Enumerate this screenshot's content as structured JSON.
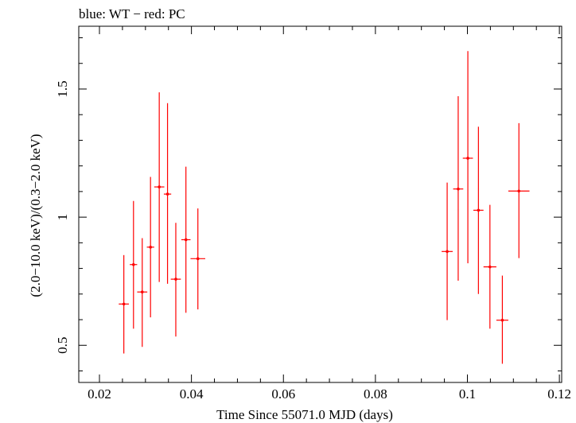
{
  "chart_data": {
    "type": "scatter",
    "title": "blue: WT − red: PC",
    "xlabel": "Time Since 55071.0 MJD (days)",
    "ylabel": "(2.0−10.0 keV)/(0.3−2.0 keV)",
    "xlim": [
      0.0155,
      0.1205
    ],
    "ylim": [
      0.355,
      1.745
    ],
    "xticks": [
      0.02,
      0.04,
      0.06,
      0.08,
      0.1,
      0.12
    ],
    "xtick_labels": [
      "0.02",
      "0.04",
      "0.06",
      "0.08",
      "0.1",
      "0.12"
    ],
    "yticks": [
      0.5,
      1,
      1.5
    ],
    "ytick_labels": [
      "0.5",
      "1",
      "1.5"
    ],
    "grid": false,
    "series": [
      {
        "name": "PC",
        "color": "#ff0000",
        "points": [
          {
            "x": 0.0253,
            "xerr": 0.0011,
            "y": 0.661,
            "ylo": 0.468,
            "yhi": 0.852
          },
          {
            "x": 0.0274,
            "xerr": 0.0008,
            "y": 0.815,
            "ylo": 0.565,
            "yhi": 1.063
          },
          {
            "x": 0.0293,
            "xerr": 0.0011,
            "y": 0.708,
            "ylo": 0.494,
            "yhi": 0.918
          },
          {
            "x": 0.0311,
            "xerr": 0.0008,
            "y": 0.883,
            "ylo": 0.609,
            "yhi": 1.157
          },
          {
            "x": 0.033,
            "xerr": 0.0011,
            "y": 1.118,
            "ylo": 0.747,
            "yhi": 1.487
          },
          {
            "x": 0.0348,
            "xerr": 0.0008,
            "y": 1.09,
            "ylo": 0.74,
            "yhi": 1.445
          },
          {
            "x": 0.0366,
            "xerr": 0.0011,
            "y": 0.758,
            "ylo": 0.534,
            "yhi": 0.978
          },
          {
            "x": 0.0388,
            "xerr": 0.001,
            "y": 0.912,
            "ylo": 0.627,
            "yhi": 1.197
          },
          {
            "x": 0.0414,
            "xerr": 0.0016,
            "y": 0.838,
            "ylo": 0.64,
            "yhi": 1.034
          },
          {
            "x": 0.0956,
            "xerr": 0.0012,
            "y": 0.866,
            "ylo": 0.598,
            "yhi": 1.135
          },
          {
            "x": 0.098,
            "xerr": 0.0011,
            "y": 1.11,
            "ylo": 0.752,
            "yhi": 1.472
          },
          {
            "x": 0.1001,
            "xerr": 0.0011,
            "y": 1.23,
            "ylo": 0.82,
            "yhi": 1.648
          },
          {
            "x": 0.1024,
            "xerr": 0.0011,
            "y": 1.027,
            "ylo": 0.7,
            "yhi": 1.353
          },
          {
            "x": 0.1049,
            "xerr": 0.0014,
            "y": 0.806,
            "ylo": 0.565,
            "yhi": 1.048
          },
          {
            "x": 0.1076,
            "xerr": 0.0013,
            "y": 0.598,
            "ylo": 0.428,
            "yhi": 0.772
          },
          {
            "x": 0.1112,
            "xerr": 0.0023,
            "y": 1.102,
            "ylo": 0.84,
            "yhi": 1.367
          }
        ]
      }
    ]
  }
}
